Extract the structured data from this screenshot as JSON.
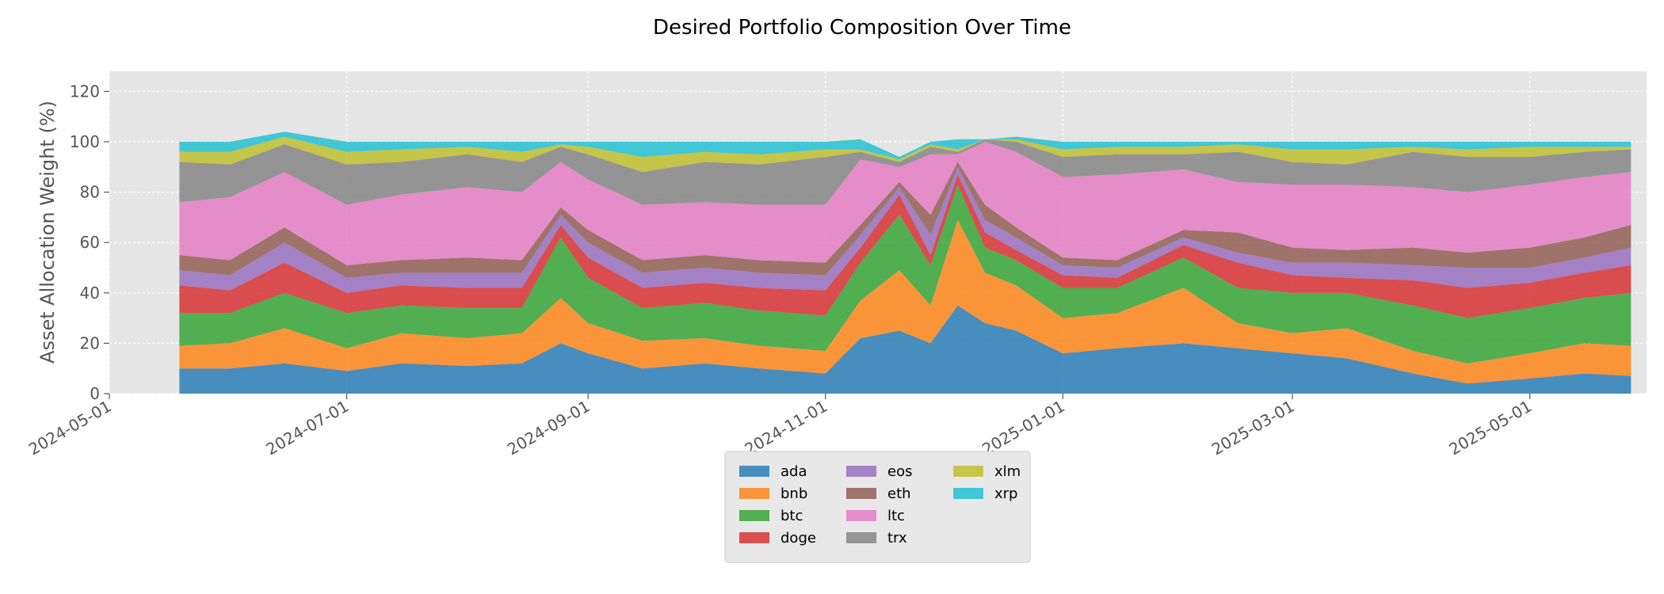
{
  "chart_data": {
    "type": "area",
    "stacked": true,
    "title": "Desired Portfolio Composition Over Time",
    "xlabel": "",
    "ylabel": "Asset Allocation Weight (%)",
    "xlim": [
      "2024-05-01",
      "2025-05-31"
    ],
    "ylim": [
      0,
      128
    ],
    "xticks": [
      "2024-05-01",
      "2024-07-01",
      "2024-09-01",
      "2024-11-01",
      "2025-01-01",
      "2025-03-01",
      "2025-05-01"
    ],
    "yticks": [
      0,
      20,
      40,
      60,
      80,
      100,
      120
    ],
    "grid": true,
    "legend": "bottom-center",
    "x": [
      "2024-05-19",
      "2024-06-01",
      "2024-06-15",
      "2024-07-01",
      "2024-07-15",
      "2024-08-01",
      "2024-08-15",
      "2024-08-25",
      "2024-09-01",
      "2024-09-15",
      "2024-10-01",
      "2024-10-15",
      "2024-11-01",
      "2024-11-10",
      "2024-11-20",
      "2024-11-28",
      "2024-12-05",
      "2024-12-12",
      "2024-12-20",
      "2025-01-01",
      "2025-01-15",
      "2025-02-01",
      "2025-02-15",
      "2025-03-01",
      "2025-03-15",
      "2025-04-01",
      "2025-04-15",
      "2025-05-01",
      "2025-05-15",
      "2025-05-27"
    ],
    "series": [
      {
        "name": "ada",
        "color": "#1f77b4",
        "values": [
          10,
          10,
          12,
          9,
          12,
          11,
          12,
          20,
          16,
          10,
          12,
          10,
          8,
          22,
          25,
          20,
          35,
          28,
          25,
          16,
          18,
          20,
          18,
          16,
          14,
          8,
          4,
          6,
          8,
          7
        ]
      },
      {
        "name": "bnb",
        "color": "#ff7f0e",
        "values": [
          9,
          10,
          14,
          9,
          12,
          11,
          12,
          18,
          12,
          11,
          10,
          9,
          9,
          15,
          24,
          15,
          34,
          20,
          18,
          14,
          14,
          22,
          10,
          8,
          12,
          9,
          8,
          10,
          12,
          12
        ]
      },
      {
        "name": "btc",
        "color": "#2ca02c",
        "values": [
          13,
          12,
          14,
          14,
          11,
          12,
          10,
          24,
          18,
          13,
          14,
          14,
          14,
          15,
          22,
          16,
          14,
          10,
          10,
          12,
          10,
          12,
          14,
          16,
          14,
          18,
          18,
          18,
          18,
          21
        ]
      },
      {
        "name": "doge",
        "color": "#d62728",
        "values": [
          11,
          9,
          12,
          8,
          8,
          8,
          8,
          5,
          8,
          8,
          8,
          9,
          10,
          6,
          8,
          4,
          4,
          6,
          4,
          5,
          4,
          5,
          10,
          7,
          6,
          10,
          12,
          10,
          10,
          11
        ]
      },
      {
        "name": "eos",
        "color": "#9467bd",
        "values": [
          6,
          6,
          8,
          6,
          5,
          6,
          6,
          4,
          6,
          6,
          6,
          6,
          6,
          5,
          3,
          8,
          3,
          5,
          5,
          4,
          4,
          3,
          4,
          5,
          6,
          6,
          8,
          6,
          6,
          7
        ]
      },
      {
        "name": "eth",
        "color": "#8c564b",
        "values": [
          6,
          6,
          6,
          5,
          5,
          6,
          5,
          3,
          5,
          5,
          5,
          5,
          5,
          4,
          2,
          8,
          2,
          6,
          4,
          3,
          3,
          3,
          8,
          6,
          5,
          7,
          6,
          8,
          8,
          9
        ]
      },
      {
        "name": "ltc",
        "color": "#e377c2",
        "values": [
          21,
          25,
          22,
          24,
          26,
          28,
          27,
          18,
          20,
          22,
          21,
          22,
          23,
          26,
          6,
          24,
          3,
          25,
          30,
          32,
          34,
          24,
          20,
          25,
          26,
          24,
          24,
          25,
          24,
          21
        ]
      },
      {
        "name": "trx",
        "color": "#7f7f7f",
        "values": [
          16,
          13,
          11,
          16,
          13,
          13,
          12,
          6,
          10,
          13,
          16,
          16,
          19,
          3,
          2,
          3,
          1,
          1,
          4,
          8,
          8,
          6,
          12,
          9,
          8,
          14,
          14,
          11,
          10,
          9
        ]
      },
      {
        "name": "xlm",
        "color": "#bcbd22",
        "values": [
          4,
          5,
          3,
          5,
          5,
          3,
          4,
          1,
          3,
          6,
          4,
          4,
          3,
          1,
          1,
          1,
          1,
          0,
          1,
          3,
          3,
          3,
          3,
          5,
          6,
          2,
          3,
          4,
          2,
          1
        ]
      },
      {
        "name": "xrp",
        "color": "#17becf",
        "values": [
          4,
          4,
          2,
          4,
          3,
          2,
          4,
          1,
          2,
          6,
          4,
          5,
          3,
          4,
          1,
          1,
          4,
          0,
          1,
          3,
          2,
          2,
          1,
          3,
          3,
          2,
          3,
          2,
          2,
          2
        ]
      }
    ]
  }
}
